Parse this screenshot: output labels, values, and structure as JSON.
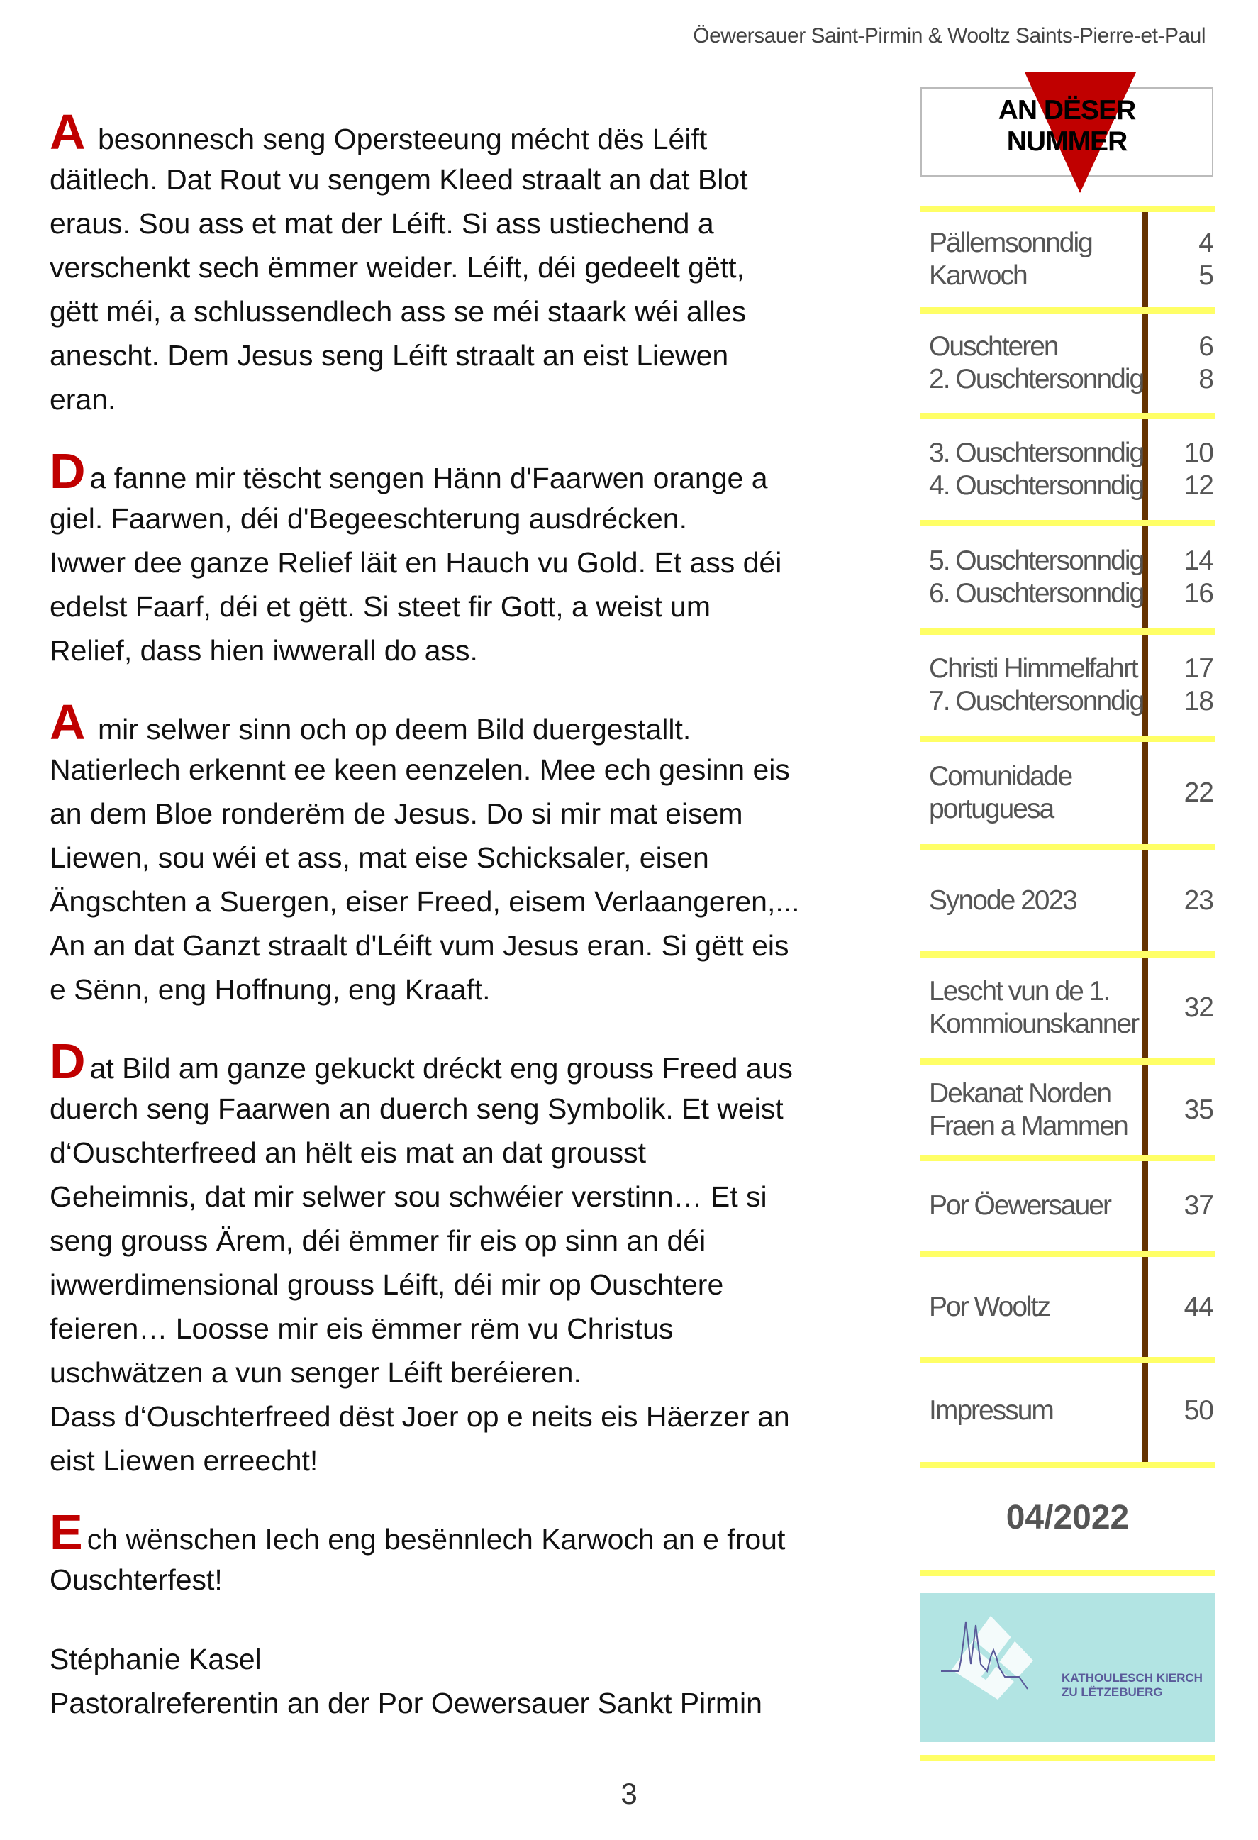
{
  "header": {
    "title": "Öewersauer Saint-Pirmin & Wooltz Saints-Pierre-et-Paul"
  },
  "article": {
    "paragraphs": [
      {
        "initial": "A",
        "lines": [
          " besonnesch seng Opersteeung mécht dës Léift",
          "däitlech. Dat Rout vu sengem Kleed straalt an dat Blot",
          "eraus. Sou ass et mat der Léift. Si ass ustiechend a",
          "verschenkt sech ëmmer weider. Léift, déi gedeelt gëtt,",
          "gëtt méi, a schlussendlech ass se méi staark wéi alles",
          "anescht. Dem Jesus seng Léift straalt an eist Liewen",
          "eran."
        ]
      },
      {
        "initial": "D",
        "lines": [
          "a fanne mir tëscht sengen Hänn d'Faarwen orange a",
          "giel. Faarwen, déi d'Begeeschterung ausdrécken.",
          "Iwwer dee ganze Relief läit en Hauch vu Gold. Et ass déi",
          "edelst Faarf, déi et gëtt. Si steet fir Gott, a weist um",
          "Relief, dass hien iwwerall do ass."
        ]
      },
      {
        "initial": "A",
        "lines": [
          " mir selwer sinn och op deem Bild duergestallt.",
          "Natierlech erkennt ee keen eenzelen. Mee ech gesinn eis",
          "an dem Bloe ronderëm de Jesus. Do si mir mat eisem",
          "Liewen, sou wéi et ass, mat eise Schicksaler, eisen",
          "Ängschten a Suergen, eiser Freed, eisem Verlaangeren,...",
          "An an dat Ganzt straalt d'Léift vum Jesus eran. Si gëtt eis",
          "e Sënn, eng Hoffnung, eng Kraaft."
        ]
      },
      {
        "initial": "D",
        "lines": [
          "at Bild am ganze gekuckt dréckt eng grouss Freed aus",
          "duerch seng Faarwen an duerch seng Symbolik. Et weist",
          "d‘Ouschterfreed an hëlt eis mat an dat grousst",
          "Geheimnis, dat mir selwer sou schwéier verstinn… Et si",
          "seng grouss Ärem, déi ëmmer fir eis op sinn an déi",
          "iwwerdimensional grouss Léift, déi mir op Ouschtere",
          "feieren… Loosse mir eis ëmmer rëm vu Christus",
          "uschwätzen a vun senger Léift beréieren.",
          "Dass d‘Ouschterfreed dëst Joer op e neits eis Häerzer an",
          "eist Liewen erreecht!"
        ]
      },
      {
        "initial": "E",
        "lines": [
          "ch wënschen Iech eng besënnlech Karwoch an e frout",
          "Ouschterfest!"
        ]
      }
    ],
    "signature": {
      "name": "Stéphanie Kasel",
      "role": "Pastoralreferentin an der Por Oewersauer Sankt Pirmin"
    }
  },
  "sidebar": {
    "heading": [
      "AN DËSER",
      "NUMMER"
    ],
    "toc": [
      {
        "labels": [
          "Pällemsonndig",
          "Karwoch"
        ],
        "pages": [
          "4",
          "5"
        ]
      },
      {
        "labels": [
          "Ouschteren",
          "2. Ouschtersonndig"
        ],
        "pages": [
          "6",
          "8"
        ]
      },
      {
        "labels": [
          "3. Ouschtersonndig",
          "4. Ouschtersonndig"
        ],
        "pages": [
          "10",
          "12"
        ]
      },
      {
        "labels": [
          "5. Ouschtersonndig",
          "6. Ouschtersonndig"
        ],
        "pages": [
          "14",
          "16"
        ]
      },
      {
        "labels": [
          "Christi Himmelfahrt",
          "7. Ouschtersonndig"
        ],
        "pages": [
          "17",
          "18"
        ]
      },
      {
        "labels": [
          "Comunidade",
          "portuguesa"
        ],
        "pages": [
          "22"
        ]
      },
      {
        "labels": [
          "Synode 2023"
        ],
        "pages": [
          "23"
        ]
      },
      {
        "labels": [
          "Lescht vun de 1.",
          "Kommiounskanner"
        ],
        "pages": [
          "32"
        ]
      },
      {
        "labels": [
          "Dekanat Norden",
          "Fraen a Mammen"
        ],
        "pages": [
          "35"
        ]
      },
      {
        "labels": [
          "Por Öewersauer"
        ],
        "pages": [
          "37"
        ]
      },
      {
        "labels": [
          "Por Wooltz"
        ],
        "pages": [
          "44"
        ]
      },
      {
        "labels": [
          "Impressum"
        ],
        "pages": [
          "50"
        ]
      }
    ],
    "issue": "04/2022",
    "logo_text": [
      "KATHOULESCH KIERCH",
      "ZU LËTZEBUERG"
    ]
  },
  "page_number": "3",
  "colors": {
    "accent_red": "#c00000",
    "divider_yellow": "#ffff66",
    "bar_brown": "#663300",
    "logo_bg": "#b2e4e3"
  }
}
